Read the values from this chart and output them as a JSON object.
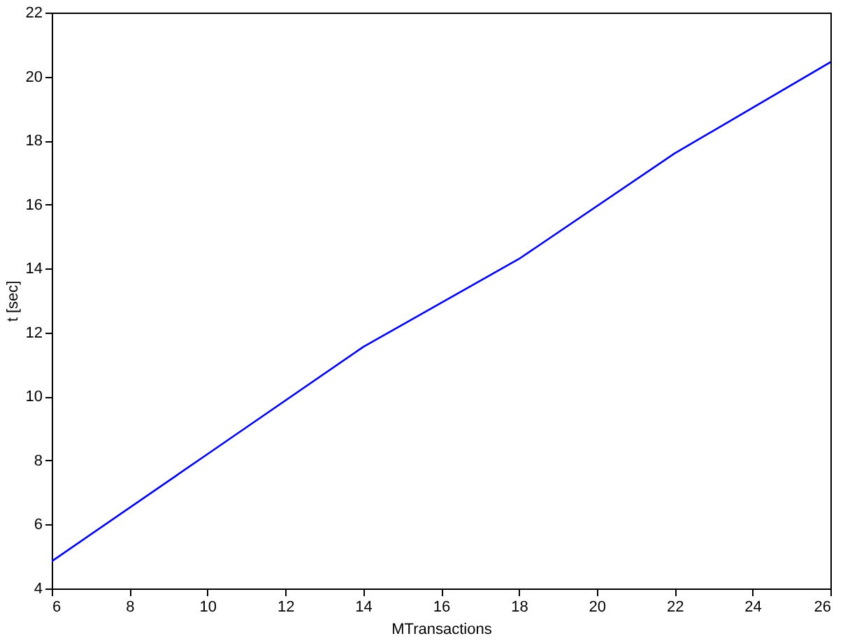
{
  "chart_data": {
    "type": "line",
    "xlabel": "MTransactions",
    "ylabel": "t [sec]",
    "x": [
      6,
      10,
      14,
      18,
      22,
      26
    ],
    "series": [
      {
        "color": "#0000ff",
        "values": [
          4.85,
          8.2,
          11.55,
          14.3,
          17.6,
          20.45
        ]
      }
    ],
    "xlim": [
      6,
      26
    ],
    "ylim": [
      4,
      22
    ],
    "xticks": [
      6,
      8,
      10,
      12,
      14,
      16,
      18,
      20,
      22,
      24,
      26
    ],
    "yticks": [
      4,
      6,
      8,
      10,
      12,
      14,
      16,
      18,
      20,
      22
    ],
    "grid": false,
    "marker": "none",
    "line_style": "solid"
  }
}
